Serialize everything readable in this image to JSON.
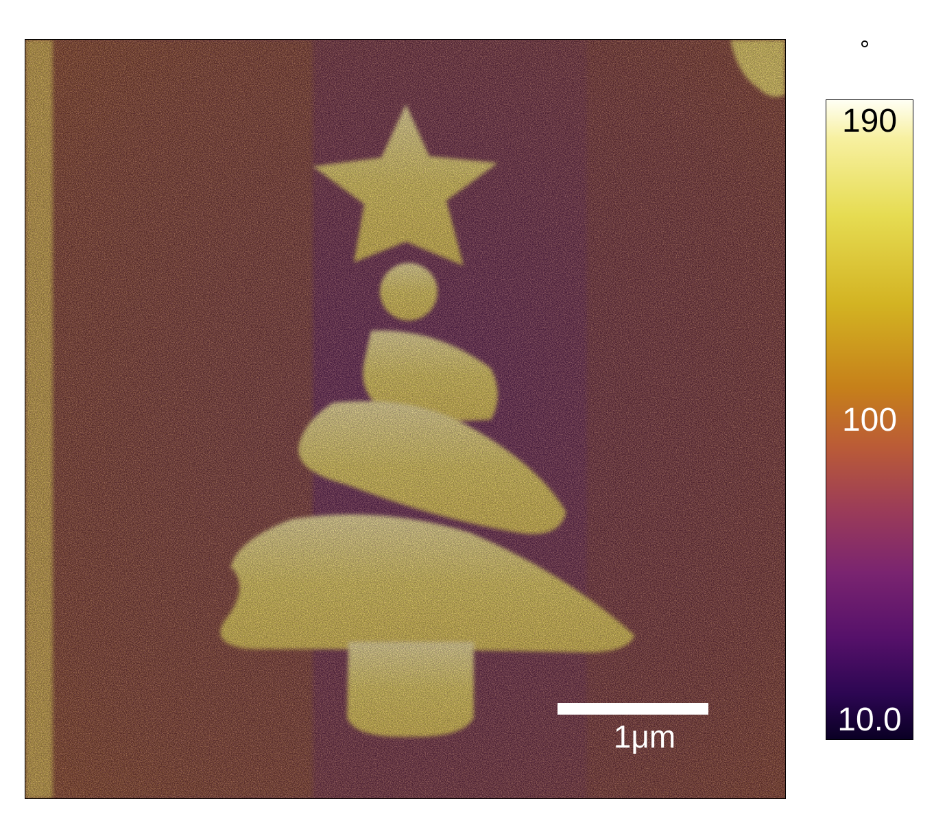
{
  "image": {
    "icon": "christmas-tree-phase-map",
    "colors": {
      "background": "#6a2a62",
      "feature": "#f1e56e",
      "highlight": "#fff8c8"
    }
  },
  "scale_bar": {
    "label": "1μm"
  },
  "colorbar": {
    "unit": "°",
    "max_label": "190",
    "mid_label": "100",
    "min_label": "10.0",
    "range": [
      10.0,
      190
    ]
  }
}
